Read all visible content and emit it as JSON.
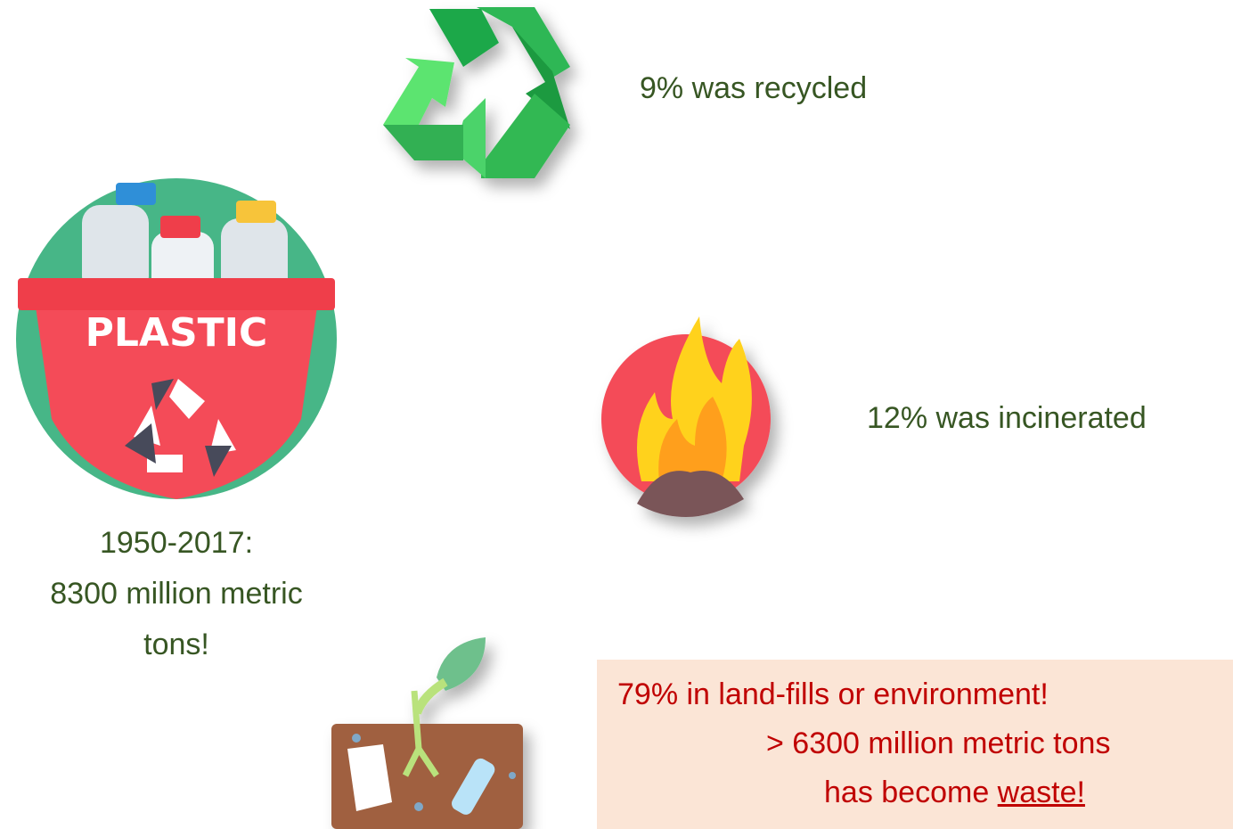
{
  "items": {
    "recycled": "9% was recycled",
    "incinerated": "12% was incinerated",
    "bin_label": "PLASTIC",
    "total": [
      "1950-2017:",
      "8300 million metric",
      "tons!"
    ],
    "waste_box": {
      "line1": "79% in land-fills or environment!",
      "line2": "> 6300 million metric tons",
      "line3": "has become ",
      "emphasis": "waste!"
    }
  }
}
